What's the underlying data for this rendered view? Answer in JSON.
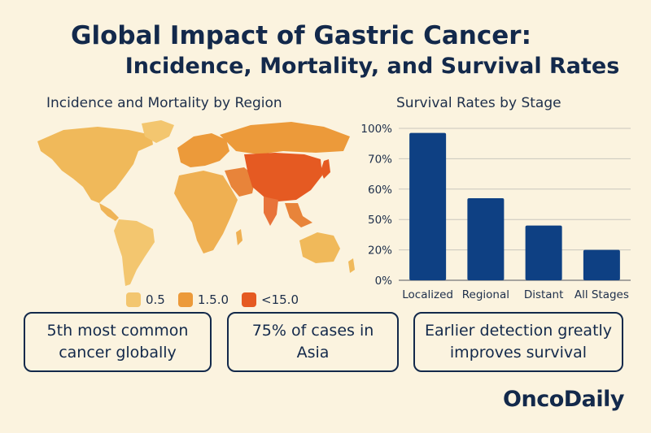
{
  "title": {
    "line1": "Global Impact of Gastric Cancer:",
    "line2": "Incidence, Mortality, and Survival Rates"
  },
  "map": {
    "title": "Incidence and Mortality by Region",
    "legend": [
      {
        "label": "0.5",
        "color": "#f3c66f"
      },
      {
        "label": "1.5.0",
        "color": "#ec9a3a"
      },
      {
        "label": "<15.0",
        "color": "#e55a22"
      }
    ]
  },
  "chart_data": {
    "type": "bar",
    "title": "Survival Rates by Stage",
    "categories": [
      "Localized",
      "Regional",
      "Distant",
      "All Stages"
    ],
    "values": [
      97,
      54,
      36,
      20
    ],
    "ytick_labels": [
      "0%",
      "20%",
      "50%",
      "60%",
      "70%",
      "100%"
    ],
    "color": "#0e4083",
    "grid": true
  },
  "facts": [
    {
      "text": "5th most common cancer globally"
    },
    {
      "text": "75% of cases in Asia"
    },
    {
      "text": "Earlier detection greatly improves survival"
    }
  ],
  "brand": "OncoDaily"
}
